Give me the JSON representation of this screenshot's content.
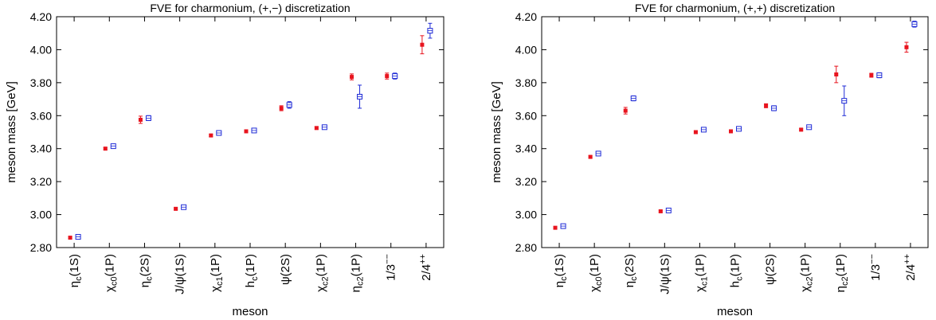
{
  "chart_data": [
    {
      "type": "scatter",
      "title": "FVE for charmonium, (+,−) discretization",
      "xlabel": "meson",
      "ylabel": "meson mass [GeV]",
      "ylim": [
        2.8,
        4.2
      ],
      "yticks": [
        "2.80",
        "3.00",
        "3.20",
        "3.40",
        "3.60",
        "3.80",
        "4.00",
        "4.20"
      ],
      "categories": [
        "ηc(1S)",
        "χc0(1P)",
        "ηc(2S)",
        "J/ψ(1S)",
        "χc1(1P)",
        "hc(1P)",
        "ψ(2S)",
        "χc2(1P)",
        "ηc2(1P)",
        "1/3−−",
        "2/4++"
      ],
      "grid": false,
      "legend": "none",
      "series": [
        {
          "marker": "filled-square",
          "color": "#e8141e",
          "values": [
            2.86,
            3.4,
            3.575,
            3.035,
            3.48,
            3.505,
            3.645,
            3.525,
            3.835,
            3.84,
            4.03
          ],
          "errors": [
            0.006,
            0.006,
            0.022,
            0.006,
            0.007,
            0.006,
            0.015,
            0.007,
            0.018,
            0.018,
            0.055
          ]
        },
        {
          "marker": "open-square",
          "color": "#1f2bd6",
          "values": [
            2.865,
            3.415,
            3.585,
            3.045,
            3.495,
            3.51,
            3.665,
            3.53,
            3.715,
            3.84,
            4.115
          ],
          "errors": [
            0.006,
            0.006,
            0.015,
            0.006,
            0.007,
            0.006,
            0.02,
            0.007,
            0.07,
            0.018,
            0.045
          ]
        }
      ]
    },
    {
      "type": "scatter",
      "title": "FVE for charmonium, (+,+) discretization",
      "xlabel": "meson",
      "ylabel": "meson mass [GeV]",
      "ylim": [
        2.8,
        4.2
      ],
      "yticks": [
        "2.80",
        "3.00",
        "3.20",
        "3.40",
        "3.60",
        "3.80",
        "4.00",
        "4.20"
      ],
      "categories": [
        "ηc(1S)",
        "χc0(1P)",
        "ηc(2S)",
        "J/ψ(1S)",
        "χc1(1P)",
        "hc(1P)",
        "ψ(2S)",
        "χc2(1P)",
        "ηc2(1P)",
        "1/3−−",
        "2/4++"
      ],
      "grid": false,
      "legend": "none",
      "series": [
        {
          "marker": "filled-square",
          "color": "#e8141e",
          "values": [
            2.92,
            3.35,
            3.63,
            3.02,
            3.5,
            3.505,
            3.66,
            3.515,
            3.85,
            3.845,
            4.015
          ],
          "errors": [
            0.006,
            0.006,
            0.02,
            0.006,
            0.006,
            0.006,
            0.012,
            0.006,
            0.05,
            0.012,
            0.03
          ]
        },
        {
          "marker": "open-square",
          "color": "#1f2bd6",
          "values": [
            2.93,
            3.37,
            3.705,
            3.025,
            3.515,
            3.52,
            3.645,
            3.53,
            3.69,
            3.845,
            4.155
          ],
          "errors": [
            0.006,
            0.008,
            0.015,
            0.006,
            0.008,
            0.006,
            0.015,
            0.007,
            0.09,
            0.015,
            0.018
          ]
        }
      ]
    }
  ]
}
